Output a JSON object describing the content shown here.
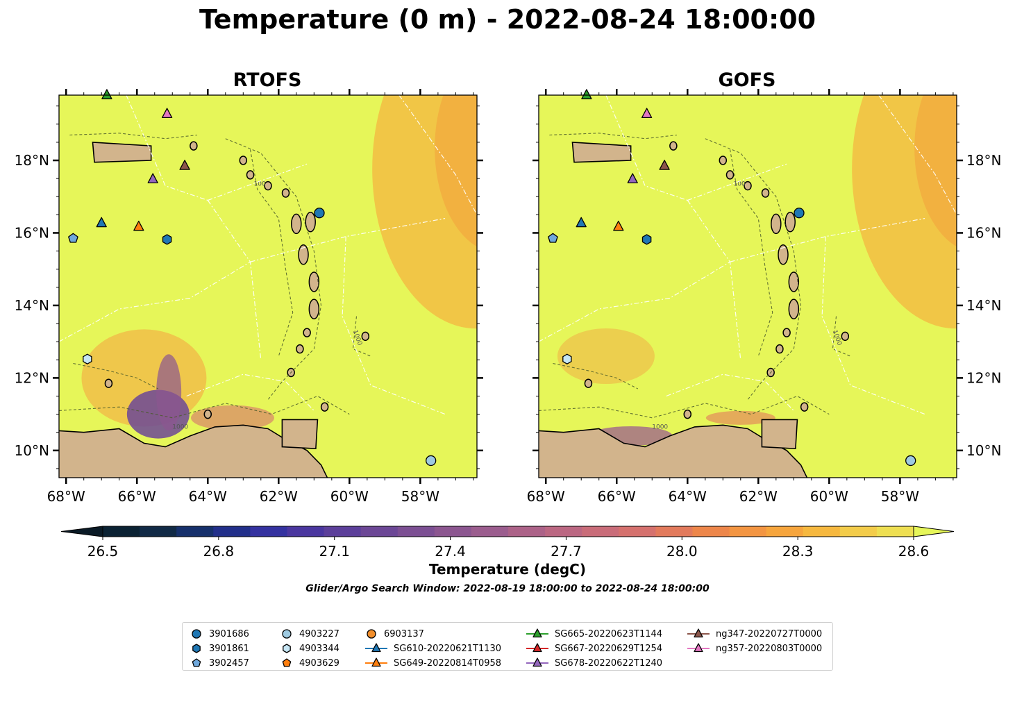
{
  "title": "Temperature (0 m) - 2022-08-24 18:00:00",
  "panels": [
    {
      "title": "RTOFS",
      "y_labels_side": "left"
    },
    {
      "title": "GOFS",
      "y_labels_side": "right"
    }
  ],
  "map": {
    "lon_range": [
      -68.2,
      -56.4
    ],
    "lat_range": [
      9.25,
      19.8
    ],
    "lon_ticks": [
      {
        "value": -68,
        "label": "68°W"
      },
      {
        "value": -66,
        "label": "66°W"
      },
      {
        "value": -64,
        "label": "64°W"
      },
      {
        "value": -62,
        "label": "62°W"
      },
      {
        "value": -60,
        "label": "60°W"
      },
      {
        "value": -58,
        "label": "58°W"
      }
    ],
    "lat_ticks": [
      {
        "value": 10,
        "label": "10°N"
      },
      {
        "value": 12,
        "label": "12°N"
      },
      {
        "value": 14,
        "label": "14°N"
      },
      {
        "value": 16,
        "label": "16°N"
      },
      {
        "value": 18,
        "label": "18°N"
      }
    ],
    "ocean_color": "#e6f659",
    "land_color": "#d2b48c",
    "contour_labels": [
      "100",
      "1000"
    ]
  },
  "colorbar": {
    "label": "Temperature (degC)",
    "min": 26.5,
    "max": 28.6,
    "ticks": [
      "26.5",
      "26.8",
      "27.1",
      "27.4",
      "27.7",
      "28.0",
      "28.3",
      "28.6"
    ],
    "colors": [
      "#0b2233",
      "#112a46",
      "#16306b",
      "#222f8a",
      "#3432a0",
      "#4a369f",
      "#5c3f9a",
      "#6c4796",
      "#7c4f93",
      "#8c5690",
      "#9b5d8e",
      "#ac6288",
      "#bb6782",
      "#c96c79",
      "#d5716e",
      "#e27a5c",
      "#ed864a",
      "#f39542",
      "#f6a53d",
      "#f6b83f",
      "#f3cc4a",
      "#eedf52"
    ],
    "under_color": "#0a1a26",
    "over_color": "#e6f659"
  },
  "search_window": "Glider/Argo Search Window: 2022-08-19 18:00:00 to 2022-08-24 18:00:00",
  "observations": [
    {
      "id": "3901686",
      "marker": "circle",
      "color": "#1f77b4",
      "lon": -60.85,
      "lat": 16.55
    },
    {
      "id": "3901861",
      "marker": "hexagon",
      "color": "#1f77b4",
      "lon": -65.15,
      "lat": 15.82
    },
    {
      "id": "3902457",
      "marker": "pentagon",
      "color": "#6fa8dc",
      "lon": -67.8,
      "lat": 15.85
    },
    {
      "id": "4903227",
      "marker": "circle",
      "color": "#9ecae1",
      "lon": -57.7,
      "lat": 9.72
    },
    {
      "id": "4903344",
      "marker": "hexagon",
      "color": "#c6e6f5",
      "lon": -67.4,
      "lat": 12.52
    },
    {
      "id": "4903629",
      "marker": "pentagon",
      "color": "#ff7f0e",
      "lon": null,
      "lat": null
    },
    {
      "id": "6903137",
      "marker": "circle",
      "color": "#f28e2b",
      "lon": null,
      "lat": null
    },
    {
      "id": "SG610-20220621T1130",
      "marker": "triangle",
      "color": "#1f77b4",
      "lon": -67.0,
      "lat": 16.27
    },
    {
      "id": "SG649-20220814T0958",
      "marker": "triangle",
      "color": "#ff7f0e",
      "lon": -65.95,
      "lat": 16.17
    },
    {
      "id": "SG665-20220623T1144",
      "marker": "triangle",
      "color": "#2ca02c",
      "lon": -66.85,
      "lat": 19.8
    },
    {
      "id": "SG667-20220629T1254",
      "marker": "triangle",
      "color": "#d62728",
      "lon": null,
      "lat": null
    },
    {
      "id": "SG678-20220622T1240",
      "marker": "triangle",
      "color": "#9467bd",
      "lon": -65.55,
      "lat": 17.48
    },
    {
      "id": "ng347-20220727T0000",
      "marker": "triangle",
      "color": "#8c564b",
      "lon": -64.65,
      "lat": 17.85
    },
    {
      "id": "ng357-20220803T0000",
      "marker": "triangle",
      "color": "#e377c2",
      "lon": -65.15,
      "lat": 19.28
    }
  ]
}
